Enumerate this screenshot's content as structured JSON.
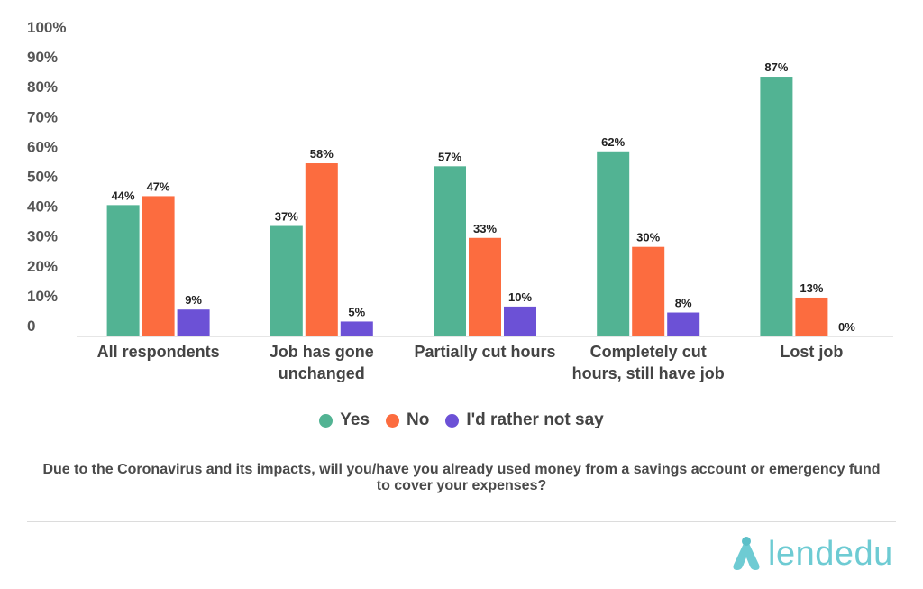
{
  "chart_data": {
    "type": "bar",
    "categories": [
      [
        "All respondents"
      ],
      [
        "Job has gone",
        "unchanged"
      ],
      [
        "Partially cut hours"
      ],
      [
        "Completely cut",
        "hours, still have job"
      ],
      [
        "Lost job"
      ]
    ],
    "series": [
      {
        "name": "Yes",
        "color": "#52b393",
        "values": [
          44,
          37,
          57,
          62,
          87
        ]
      },
      {
        "name": "No",
        "color": "#fc6c3f",
        "values": [
          47,
          58,
          33,
          30,
          13
        ]
      },
      {
        "name": "I'd rather not say",
        "color": "#6c51d6",
        "values": [
          9,
          5,
          10,
          8,
          0
        ]
      }
    ],
    "data_labels": [
      [
        "44%",
        "37%",
        "57%",
        "62%",
        "87%"
      ],
      [
        "47%",
        "58%",
        "33%",
        "30%",
        "13%"
      ],
      [
        "9%",
        "5%",
        "10%",
        "8%",
        "0%"
      ]
    ],
    "yticks": [
      "0",
      "10%",
      "20%",
      "30%",
      "40%",
      "50%",
      "60%",
      "70%",
      "80%",
      "90%",
      "100%"
    ],
    "ylim": [
      0,
      100
    ],
    "grid": false,
    "legend_position": "bottom"
  },
  "legend": [
    "Yes",
    "No",
    "I'd rather not say"
  ],
  "caption": "Due to the Coronavirus and its impacts, will you/have you already used money from a savings account or emergency fund to cover your expenses?",
  "brand": {
    "name": "lendedu",
    "color": "#6ecbd3"
  }
}
